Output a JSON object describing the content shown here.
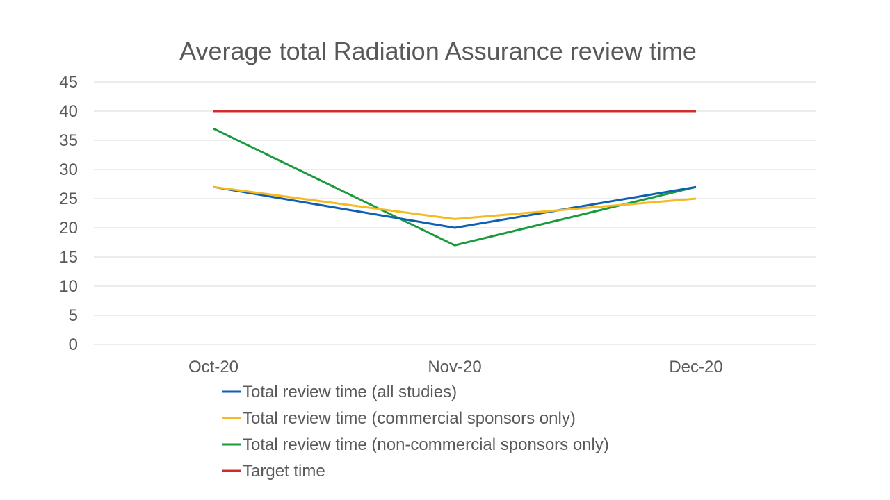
{
  "chart_data": {
    "type": "line",
    "title": "Average total Radiation Assurance review time",
    "xlabel": "",
    "ylabel": "",
    "categories": [
      "Oct-20",
      "Nov-20",
      "Dec-20"
    ],
    "ylim": [
      0,
      45
    ],
    "yticks": [
      0,
      5,
      10,
      15,
      20,
      25,
      30,
      35,
      40,
      45
    ],
    "grid": true,
    "legend_position": "bottom",
    "series": [
      {
        "name": "Total review time (all studies)",
        "color": "#0f5fb3",
        "values": [
          27,
          20,
          27
        ]
      },
      {
        "name": "Total review time (commercial sponsors only)",
        "color": "#f5b922",
        "values": [
          27,
          21.5,
          25
        ]
      },
      {
        "name": "Total review time (non-commercial sponsors only)",
        "color": "#1b9a3d",
        "values": [
          37,
          17,
          27
        ]
      },
      {
        "name": "Target time",
        "color": "#d12c2c",
        "values": [
          40,
          40,
          40
        ]
      }
    ]
  }
}
